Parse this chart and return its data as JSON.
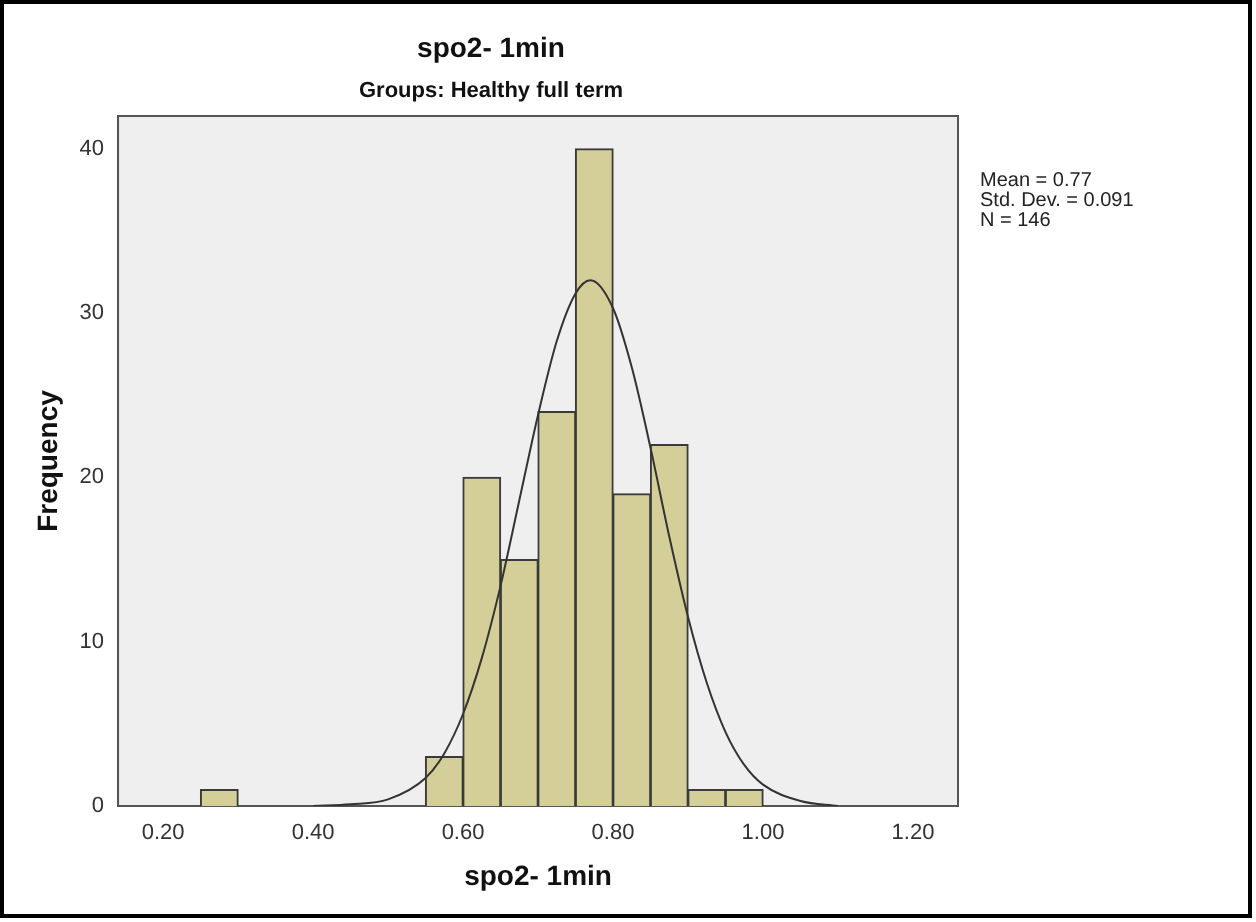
{
  "chart_data": {
    "type": "histogram",
    "title": "spo2- 1min",
    "subtitle": "Groups: Healthy full term",
    "xlabel": "spo2- 1min",
    "ylabel": "Frequency",
    "bins": [
      0.25,
      0.3,
      0.35,
      0.4,
      0.45,
      0.5,
      0.55,
      0.6,
      0.65,
      0.7,
      0.75,
      0.8,
      0.85,
      0.9,
      0.95,
      1.0
    ],
    "values": [
      1,
      0,
      0,
      0,
      0,
      0,
      3,
      20,
      15,
      24,
      40,
      19,
      22,
      1,
      1
    ],
    "color": "#d4cf99",
    "series": [
      {
        "type": "line",
        "color": "#333333",
        "x": [
          0.4,
          0.45,
          0.5,
          0.55,
          0.575,
          0.6,
          0.625,
          0.65,
          0.675,
          0.7,
          0.725,
          0.75,
          0.77,
          0.8,
          0.825,
          0.85,
          0.875,
          0.9,
          0.925,
          0.95,
          0.975,
          1.0,
          1.05,
          1.1
        ],
        "values": [
          0.0,
          0.1,
          0.4,
          1.7,
          3.2,
          5.6,
          9.0,
          13.4,
          18.6,
          23.8,
          28.3,
          31.2,
          32.0,
          30.3,
          26.7,
          21.8,
          16.4,
          11.5,
          7.5,
          4.5,
          2.5,
          1.3,
          0.3,
          0.0
        ]
      }
    ],
    "xlim": [
      0.14,
      1.26
    ],
    "ylim": [
      0,
      42
    ],
    "xticks": [
      {
        "value": 0.2,
        "label": "0.20"
      },
      {
        "value": 0.4,
        "label": "0.40"
      },
      {
        "value": 0.6,
        "label": "0.60"
      },
      {
        "value": 0.8,
        "label": "0.80"
      },
      {
        "value": 1.0,
        "label": "1.00"
      },
      {
        "value": 1.2,
        "label": "1.20"
      }
    ],
    "yticks": [
      0,
      10,
      20,
      30,
      40
    ],
    "grid": false,
    "legend": false,
    "annotations": [
      "Mean = 0.77",
      "Std. Dev. = 0.091",
      "N = 146"
    ]
  }
}
